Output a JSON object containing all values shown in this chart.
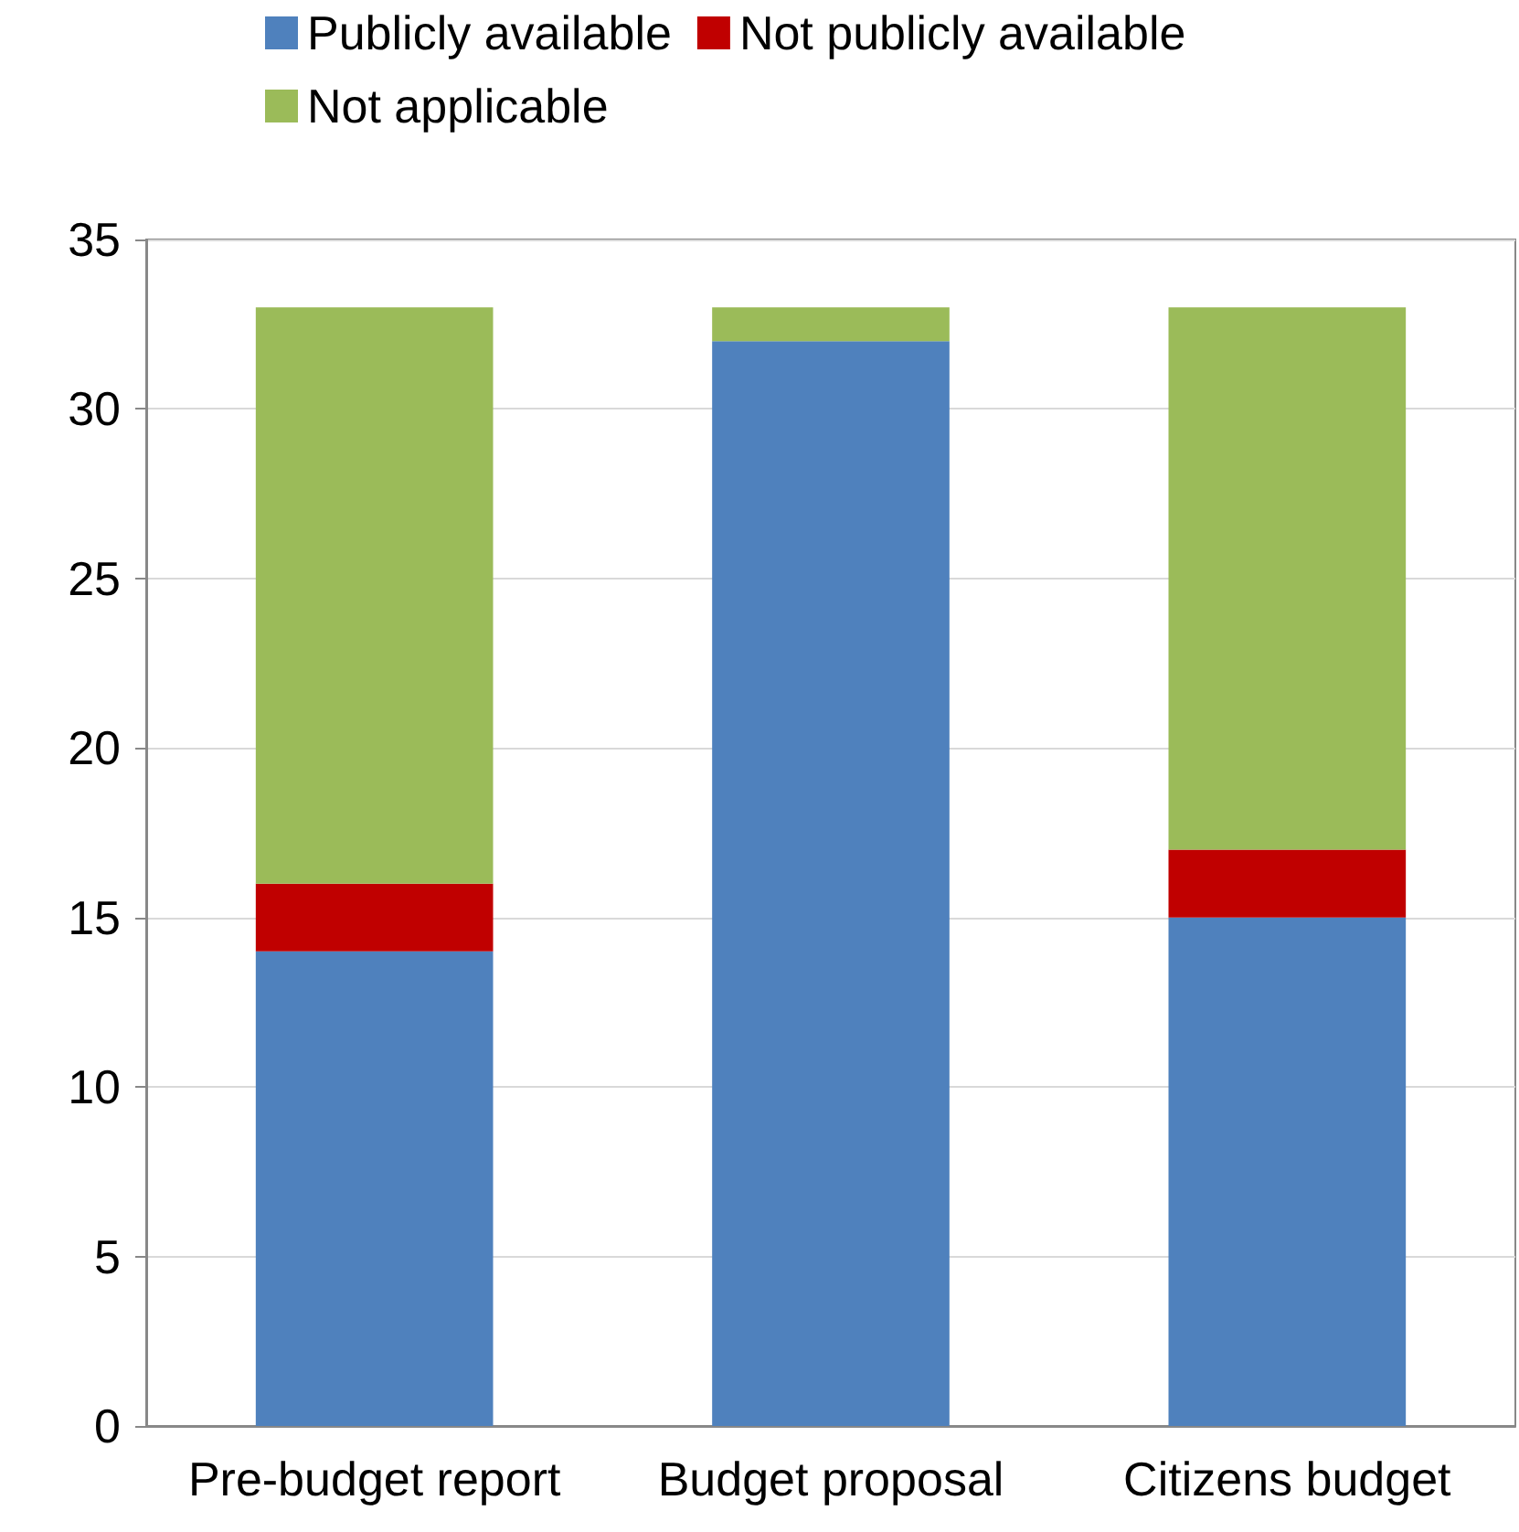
{
  "chart_data": {
    "type": "bar",
    "stacked": true,
    "categories": [
      "Pre-budget report",
      "Budget proposal",
      "Citizens budget"
    ],
    "series": [
      {
        "name": "Publicly available",
        "color": "#4f81bd",
        "values": [
          14,
          32,
          15
        ]
      },
      {
        "name": "Not publicly available",
        "color": "#c00000",
        "values": [
          2,
          0,
          2
        ]
      },
      {
        "name": "Not applicable",
        "color": "#9bbb59",
        "values": [
          17,
          1,
          16
        ]
      }
    ],
    "ylim": [
      0,
      35
    ],
    "yticks": [
      0,
      5,
      10,
      15,
      20,
      25,
      30,
      35
    ],
    "grid": "y",
    "legend": "top"
  }
}
